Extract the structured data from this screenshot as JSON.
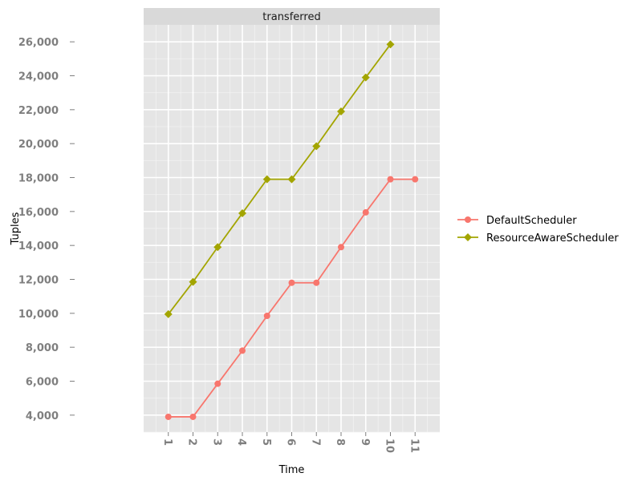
{
  "chart_data": {
    "type": "line",
    "facet_label": "transferred",
    "xlabel": "Time",
    "ylabel": "Tuples",
    "x": [
      1,
      2,
      3,
      4,
      5,
      6,
      7,
      8,
      9,
      10,
      11
    ],
    "x_tick_labels": [
      "1",
      "2",
      "3",
      "4",
      "5",
      "6",
      "7",
      "8",
      "9",
      "10",
      "11"
    ],
    "y_ticks": [
      4000,
      6000,
      8000,
      10000,
      12000,
      14000,
      16000,
      18000,
      20000,
      22000,
      24000,
      26000
    ],
    "y_tick_labels": [
      "4,000",
      "6,000",
      "8,000",
      "10,000",
      "12,000",
      "14,000",
      "16,000",
      "18,000",
      "20,000",
      "22,000",
      "24,000",
      "26,000"
    ],
    "xlim": [
      0,
      12
    ],
    "ylim": [
      3000,
      27000
    ],
    "grid": true,
    "legend_position": "right",
    "series": [
      {
        "name": "DefaultScheduler",
        "color": "#F8766D",
        "marker": "circle",
        "x": [
          1,
          2,
          3,
          4,
          5,
          6,
          7,
          8,
          9,
          10,
          11
        ],
        "values": [
          3900,
          3900,
          5850,
          7800,
          9850,
          11800,
          11800,
          13900,
          15950,
          17900,
          17900
        ]
      },
      {
        "name": "ResourceAwareScheduler",
        "color": "#A3A500",
        "marker": "diamond",
        "x": [
          1,
          2,
          3,
          4,
          5,
          6,
          7,
          8,
          9,
          10
        ],
        "values": [
          9950,
          11850,
          13900,
          15900,
          17900,
          17900,
          19850,
          21900,
          23900,
          25850
        ]
      }
    ]
  }
}
